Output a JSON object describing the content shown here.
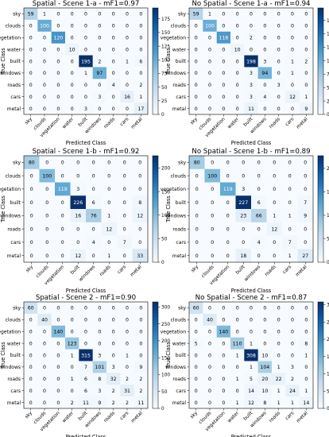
{
  "chart_data": [
    {
      "type": "heatmap",
      "title": "Spatial - Scene 1-a - mF1=0.97",
      "xlabel": "Predicted Class",
      "ylabel": "True Class",
      "classes": [
        "sky",
        "clouds",
        "vegetation",
        "water",
        "built",
        "windows",
        "roads",
        "cars",
        "metal"
      ],
      "matrix": [
        [
          59,
          1,
          0,
          0,
          0,
          0,
          0,
          0,
          0
        ],
        [
          0,
          100,
          0,
          0,
          0,
          0,
          0,
          0,
          0
        ],
        [
          0,
          0,
          120,
          0,
          0,
          0,
          0,
          0,
          0
        ],
        [
          0,
          0,
          0,
          10,
          0,
          0,
          0,
          0,
          0
        ],
        [
          0,
          0,
          0,
          0,
          195,
          2,
          0,
          1,
          6
        ],
        [
          0,
          0,
          0,
          0,
          1,
          97,
          0,
          0,
          0
        ],
        [
          0,
          0,
          0,
          0,
          0,
          0,
          4,
          0,
          2
        ],
        [
          0,
          0,
          0,
          0,
          0,
          3,
          0,
          16,
          1
        ],
        [
          0,
          0,
          0,
          0,
          3,
          0,
          0,
          0,
          17
        ]
      ],
      "colorbar_ticks": [
        0,
        25,
        50,
        75,
        100,
        125,
        150,
        175
      ],
      "vmax": 195
    },
    {
      "type": "heatmap",
      "title": "No Spatial - Scene 1-a - mF1=0.94",
      "xlabel": "Predicted Class",
      "ylabel": "True Class",
      "classes": [
        "sky",
        "clouds",
        "vegetation",
        "water",
        "built",
        "windows",
        "roads",
        "cars",
        "metal"
      ],
      "matrix": [
        [
          59,
          1,
          0,
          0,
          0,
          0,
          0,
          0,
          0
        ],
        [
          0,
          100,
          0,
          0,
          0,
          0,
          0,
          0,
          0
        ],
        [
          0,
          0,
          118,
          0,
          2,
          0,
          0,
          0,
          0
        ],
        [
          0,
          0,
          0,
          10,
          0,
          0,
          0,
          0,
          0
        ],
        [
          0,
          0,
          0,
          0,
          198,
          3,
          0,
          1,
          2
        ],
        [
          0,
          0,
          0,
          0,
          3,
          94,
          0,
          1,
          0
        ],
        [
          0,
          0,
          0,
          0,
          3,
          0,
          3,
          0,
          0
        ],
        [
          0,
          0,
          0,
          0,
          3,
          4,
          0,
          12,
          1
        ],
        [
          0,
          0,
          0,
          0,
          11,
          0,
          0,
          0,
          9
        ]
      ],
      "colorbar_ticks": [
        0,
        25,
        50,
        75,
        100,
        125,
        150,
        175
      ],
      "vmax": 198
    },
    {
      "type": "heatmap",
      "title": "Spatial - Scene 1-b - mF1=0.92",
      "xlabel": "Predicted Class",
      "ylabel": "True Class",
      "classes": [
        "sky",
        "clouds",
        "vegetation",
        "built",
        "windows",
        "roads",
        "cars",
        "metal"
      ],
      "matrix": [
        [
          80,
          0,
          0,
          0,
          0,
          0,
          0,
          0
        ],
        [
          0,
          100,
          0,
          0,
          0,
          0,
          0,
          0
        ],
        [
          0,
          0,
          119,
          3,
          0,
          0,
          0,
          0
        ],
        [
          0,
          0,
          0,
          226,
          6,
          0,
          0,
          8
        ],
        [
          0,
          0,
          0,
          16,
          76,
          1,
          0,
          12
        ],
        [
          0,
          0,
          0,
          0,
          0,
          12,
          0,
          0
        ],
        [
          0,
          0,
          0,
          0,
          4,
          0,
          7,
          0
        ],
        [
          0,
          0,
          0,
          12,
          0,
          1,
          0,
          33
        ]
      ],
      "colorbar_ticks": [
        0,
        50,
        100,
        150,
        200
      ],
      "vmax": 226
    },
    {
      "type": "heatmap",
      "title": "No Spatial - Scene 1-b - mF1=0.89",
      "xlabel": "Predicted Class",
      "ylabel": "True Class",
      "classes": [
        "sky",
        "clouds",
        "vegetation",
        "built",
        "windows",
        "roads",
        "cars",
        "metal"
      ],
      "matrix": [
        [
          80,
          0,
          0,
          0,
          0,
          0,
          0,
          0
        ],
        [
          0,
          100,
          0,
          0,
          0,
          0,
          0,
          0
        ],
        [
          0,
          0,
          119,
          3,
          0,
          0,
          0,
          0
        ],
        [
          0,
          0,
          0,
          227,
          6,
          0,
          0,
          7
        ],
        [
          0,
          0,
          0,
          23,
          66,
          1,
          1,
          9
        ],
        [
          0,
          0,
          0,
          0,
          0,
          12,
          0,
          0
        ],
        [
          0,
          0,
          0,
          0,
          4,
          0,
          7,
          0
        ],
        [
          0,
          0,
          0,
          18,
          0,
          0,
          1,
          27
        ]
      ],
      "colorbar_ticks": [
        0,
        50,
        100,
        150,
        200
      ],
      "vmax": 227
    },
    {
      "type": "heatmap",
      "title": "Spatial - Scene 2 - mF1=0.90",
      "xlabel": "Predicted Class",
      "ylabel": "True Class",
      "classes": [
        "sky",
        "clouds",
        "vegetation",
        "water",
        "built",
        "windows",
        "roads",
        "cars",
        "metal"
      ],
      "matrix": [
        [
          60,
          0,
          0,
          0,
          0,
          0,
          0,
          0,
          0
        ],
        [
          0,
          40,
          0,
          0,
          0,
          0,
          0,
          0,
          0
        ],
        [
          0,
          0,
          140,
          0,
          0,
          0,
          0,
          0,
          0
        ],
        [
          0,
          0,
          0,
          123,
          0,
          0,
          0,
          0,
          0
        ],
        [
          0,
          0,
          0,
          1,
          315,
          3,
          0,
          1,
          0
        ],
        [
          0,
          0,
          0,
          0,
          7,
          101,
          3,
          0,
          9
        ],
        [
          0,
          0,
          0,
          1,
          6,
          8,
          32,
          2,
          2
        ],
        [
          0,
          0,
          0,
          0,
          6,
          3,
          2,
          31,
          2
        ],
        [
          0,
          0,
          0,
          2,
          11,
          9,
          2,
          2,
          11
        ]
      ],
      "colorbar_ticks": [
        0,
        50,
        100,
        150,
        200,
        250,
        300
      ],
      "vmax": 315
    },
    {
      "type": "heatmap",
      "title": "No Spatial - Scene 2 - mF1=0.87",
      "xlabel": "Predicted Class",
      "ylabel": "True Class",
      "classes": [
        "sky",
        "clouds",
        "vegetation",
        "water",
        "built",
        "windows",
        "roads",
        "cars",
        "metal"
      ],
      "matrix": [
        [
          60,
          0,
          0,
          0,
          0,
          0,
          0,
          0,
          0
        ],
        [
          0,
          40,
          0,
          0,
          0,
          0,
          0,
          0,
          0
        ],
        [
          0,
          0,
          140,
          0,
          0,
          0,
          0,
          0,
          0
        ],
        [
          5,
          0,
          0,
          110,
          1,
          0,
          0,
          0,
          8
        ],
        [
          0,
          0,
          0,
          1,
          308,
          10,
          0,
          0,
          1
        ],
        [
          0,
          0,
          0,
          0,
          1,
          104,
          1,
          3,
          0
        ],
        [
          0,
          0,
          0,
          1,
          5,
          20,
          22,
          2,
          0
        ],
        [
          0,
          0,
          0,
          0,
          14,
          10,
          1,
          24,
          1
        ],
        [
          0,
          0,
          0,
          1,
          12,
          8,
          1,
          1,
          14
        ]
      ],
      "colorbar_ticks": [
        0,
        50,
        100,
        150,
        200,
        250,
        300
      ],
      "vmax": 308
    }
  ]
}
